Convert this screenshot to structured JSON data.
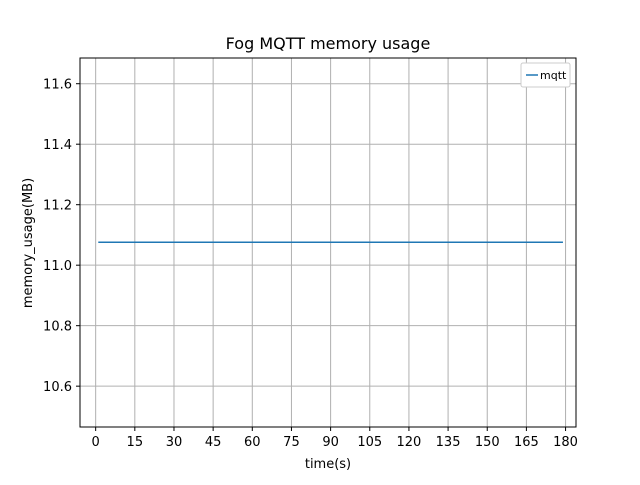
{
  "chart_data": {
    "type": "line",
    "title": "Fog MQTT memory usage",
    "xlabel": "time(s)",
    "ylabel": "memory_usage(MB)",
    "xlim": [
      -6,
      184
    ],
    "ylim": [
      10.465,
      11.685
    ],
    "xticks": [
      0,
      15,
      30,
      45,
      60,
      75,
      90,
      105,
      120,
      135,
      150,
      165,
      180
    ],
    "yticks": [
      10.6,
      10.8,
      11.0,
      11.2,
      11.4,
      11.6
    ],
    "ytick_labels": [
      "10.6",
      "10.8",
      "11.0",
      "11.2",
      "11.4",
      "11.6"
    ],
    "grid": true,
    "legend_position": "top-right",
    "series": [
      {
        "name": "mqtt",
        "color": "#1f77b4",
        "x": [
          1,
          179
        ],
        "y": [
          11.076,
          11.076
        ]
      }
    ]
  }
}
